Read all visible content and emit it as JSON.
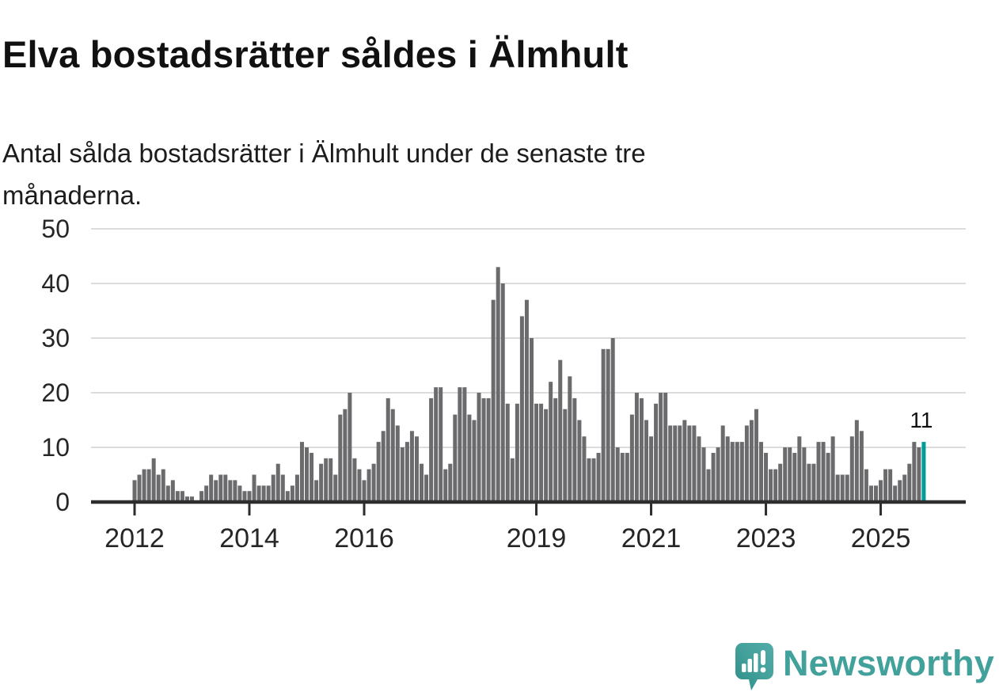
{
  "chart_data": {
    "type": "bar",
    "title": "Elva bostadsrätter såldes i Älmhult",
    "subtitle": "Antal sålda bostadsrätter i Älmhult under de senaste tre\nmånaderna.",
    "x_start": "2012-01",
    "frequency": "monthly",
    "values": [
      4,
      5,
      6,
      6,
      8,
      5,
      6,
      3,
      4,
      2,
      2,
      1,
      1,
      0,
      2,
      3,
      5,
      4,
      5,
      5,
      4,
      4,
      3,
      2,
      2,
      5,
      3,
      3,
      3,
      5,
      7,
      5,
      2,
      3,
      5,
      11,
      10,
      9,
      4,
      7,
      8,
      8,
      5,
      16,
      17,
      20,
      8,
      6,
      4,
      6,
      7,
      11,
      13,
      19,
      17,
      14,
      10,
      11,
      13,
      12,
      7,
      5,
      19,
      21,
      21,
      6,
      7,
      16,
      21,
      21,
      16,
      15,
      20,
      19,
      19,
      37,
      43,
      40,
      18,
      8,
      18,
      34,
      37,
      30,
      18,
      18,
      17,
      22,
      19,
      26,
      17,
      23,
      19,
      15,
      12,
      8,
      8,
      9,
      28,
      28,
      30,
      10,
      9,
      9,
      16,
      20,
      19,
      15,
      12,
      18,
      20,
      20,
      14,
      14,
      14,
      15,
      14,
      14,
      12,
      10,
      6,
      9,
      10,
      14,
      12,
      11,
      11,
      11,
      14,
      15,
      17,
      11,
      9,
      6,
      6,
      7,
      10,
      10,
      9,
      12,
      10,
      7,
      7,
      11,
      11,
      9,
      12,
      5,
      5,
      5,
      12,
      15,
      13,
      6,
      3,
      3,
      4,
      6,
      6,
      3,
      4,
      5,
      7,
      11,
      10,
      11
    ],
    "x_ticks": [
      {
        "label": "2012",
        "month_index": 0
      },
      {
        "label": "2014",
        "month_index": 24
      },
      {
        "label": "2016",
        "month_index": 48
      },
      {
        "label": "2019",
        "month_index": 84
      },
      {
        "label": "2021",
        "month_index": 108
      },
      {
        "label": "2023",
        "month_index": 132
      },
      {
        "label": "2025",
        "month_index": 156
      }
    ],
    "y_ticks": [
      0,
      10,
      20,
      30,
      40,
      50
    ],
    "ylim": [
      0,
      50
    ],
    "grid": true,
    "legend": "none",
    "bar_color": "#6b6b6e",
    "grid_color": "#dcdcdc",
    "axis_color": "#2d2d2d",
    "highlight": {
      "index": 165,
      "value": 11,
      "annotation": "11",
      "color": "#009b9a"
    }
  },
  "footer": {
    "brand": "Newsworthy",
    "brand_color": "#43a19c"
  }
}
